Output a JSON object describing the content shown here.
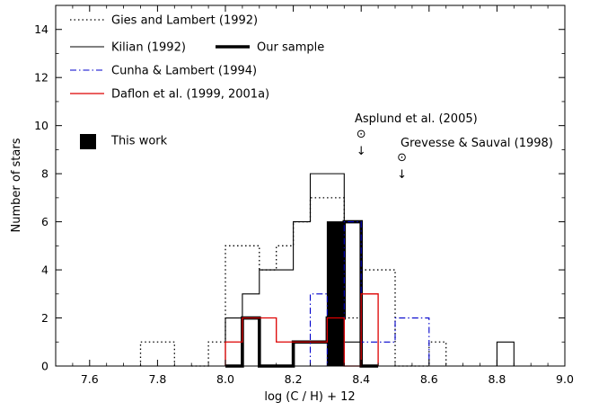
{
  "chart_data": {
    "type": "histogram",
    "xlabel": "log (C / H) + 12",
    "ylabel": "Number of stars",
    "xlim": [
      7.5,
      9.0
    ],
    "ylim": [
      0,
      15
    ],
    "xticks": [
      7.6,
      7.8,
      8.0,
      8.2,
      8.4,
      8.6,
      8.8,
      9.0
    ],
    "yticks": [
      0,
      2,
      4,
      6,
      8,
      10,
      12,
      14
    ],
    "bin_width": 0.05,
    "grid": false,
    "legend_position": "top-left",
    "series": [
      {
        "name": "Gies and Lambert (1992)",
        "color": "#000000",
        "style": "dotted",
        "bins": [
          {
            "x0": 7.75,
            "x1": 7.85,
            "count": 1
          },
          {
            "x0": 7.9,
            "x1": 7.95,
            "count": 0
          },
          {
            "x0": 7.95,
            "x1": 8.0,
            "count": 1
          },
          {
            "x0": 8.0,
            "x1": 8.1,
            "count": 5
          },
          {
            "x0": 8.1,
            "x1": 8.15,
            "count": 4
          },
          {
            "x0": 8.15,
            "x1": 8.2,
            "count": 5
          },
          {
            "x0": 8.2,
            "x1": 8.25,
            "count": 6
          },
          {
            "x0": 8.25,
            "x1": 8.35,
            "count": 7
          },
          {
            "x0": 8.35,
            "x1": 8.4,
            "count": 2
          },
          {
            "x0": 8.4,
            "x1": 8.5,
            "count": 4
          },
          {
            "x0": 8.5,
            "x1": 8.6,
            "count": 0
          },
          {
            "x0": 8.6,
            "x1": 8.65,
            "count": 1
          }
        ]
      },
      {
        "name": "Kilian (1992)",
        "color": "#000000",
        "style": "solid-thin",
        "bins": [
          {
            "x0": 8.0,
            "x1": 8.05,
            "count": 2
          },
          {
            "x0": 8.05,
            "x1": 8.1,
            "count": 3
          },
          {
            "x0": 8.1,
            "x1": 8.2,
            "count": 4
          },
          {
            "x0": 8.2,
            "x1": 8.25,
            "count": 6
          },
          {
            "x0": 8.25,
            "x1": 8.35,
            "count": 8
          },
          {
            "x0": 8.35,
            "x1": 8.4,
            "count": 1
          },
          {
            "x0": 8.8,
            "x1": 8.85,
            "count": 1
          }
        ]
      },
      {
        "name": "Our sample",
        "color": "#000000",
        "style": "solid-thick",
        "bins": [
          {
            "x0": 8.0,
            "x1": 8.05,
            "count": 0
          },
          {
            "x0": 8.05,
            "x1": 8.1,
            "count": 2
          },
          {
            "x0": 8.1,
            "x1": 8.15,
            "count": 0
          },
          {
            "x0": 8.15,
            "x1": 8.2,
            "count": 0
          },
          {
            "x0": 8.2,
            "x1": 8.3,
            "count": 1
          },
          {
            "x0": 8.3,
            "x1": 8.35,
            "count": 2
          },
          {
            "x0": 8.35,
            "x1": 8.4,
            "count": 6
          },
          {
            "x0": 8.4,
            "x1": 8.45,
            "count": 0
          }
        ]
      },
      {
        "name": "Cunha & Lambert (1994)",
        "color": "#0000cc",
        "style": "dash-dot",
        "bins": [
          {
            "x0": 8.25,
            "x1": 8.3,
            "count": 3
          },
          {
            "x0": 8.3,
            "x1": 8.35,
            "count": 0
          },
          {
            "x0": 8.35,
            "x1": 8.4,
            "count": 6
          },
          {
            "x0": 8.4,
            "x1": 8.5,
            "count": 1
          },
          {
            "x0": 8.5,
            "x1": 8.6,
            "count": 2
          }
        ]
      },
      {
        "name": "Daflon et al. (1999, 2001a)",
        "color": "#dd0000",
        "style": "solid",
        "bins": [
          {
            "x0": 8.0,
            "x1": 8.05,
            "count": 1
          },
          {
            "x0": 8.05,
            "x1": 8.15,
            "count": 2
          },
          {
            "x0": 8.15,
            "x1": 8.2,
            "count": 1
          },
          {
            "x0": 8.2,
            "x1": 8.3,
            "count": 1
          },
          {
            "x0": 8.3,
            "x1": 8.35,
            "count": 2
          },
          {
            "x0": 8.35,
            "x1": 8.4,
            "count": 0
          },
          {
            "x0": 8.4,
            "x1": 8.45,
            "count": 3
          }
        ]
      },
      {
        "name": "This work",
        "color": "#000000",
        "style": "filled",
        "bins": [
          {
            "x0": 8.3,
            "x1": 8.35,
            "count": 6
          }
        ]
      }
    ],
    "annotations": [
      {
        "text": "Asplund et al. (2005)",
        "x": 8.4,
        "symbol": "⊙",
        "arrow": "↓"
      },
      {
        "text": "Grevesse & Sauval (1998)",
        "x": 8.52,
        "symbol": "⊙",
        "arrow": "↓"
      }
    ]
  }
}
